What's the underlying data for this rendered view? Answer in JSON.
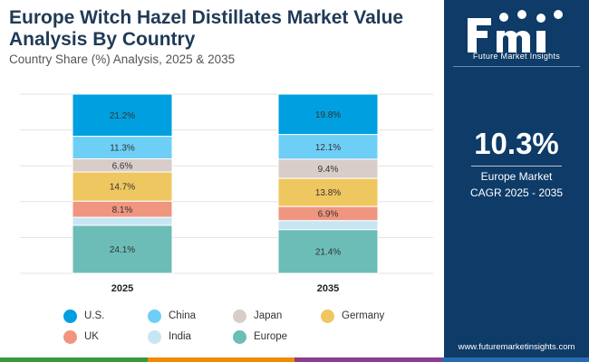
{
  "header": {
    "title": "Europe Witch Hazel Distillates Market Value Analysis By Country",
    "subtitle": "Country Share (%) Analysis, 2025 & 2035"
  },
  "panel": {
    "logo_text": "Future Market Insights",
    "cagr_value": "10.3%",
    "cagr_label_1": "Europe Market",
    "cagr_label_2": "CAGR 2025 - 2035",
    "website": "www.futuremarketinsights.com",
    "bg_color": "#0e3b67"
  },
  "bottom_strip_colors": [
    "#3a9a3a",
    "#f08a00",
    "#8a3d8f",
    "#2a6bb0"
  ],
  "chart_data": {
    "type": "bar",
    "stacked": true,
    "orientation": "vertical",
    "categories": [
      "2025",
      "2035"
    ],
    "series": [
      {
        "name": "U.S.",
        "color": "#009fdf",
        "values": [
          21.2,
          19.8
        ],
        "labels": [
          "21.2%",
          "19.8%"
        ]
      },
      {
        "name": "China",
        "color": "#6ecff6",
        "values": [
          11.3,
          12.1
        ],
        "labels": [
          "11.3%",
          "12.1%"
        ]
      },
      {
        "name": "Japan",
        "color": "#d9cdc9",
        "values": [
          6.6,
          9.4
        ],
        "labels": [
          "6.6%",
          "9.4%"
        ]
      },
      {
        "name": "Germany",
        "color": "#efc761",
        "values": [
          14.7,
          13.8
        ],
        "labels": [
          "14.7%",
          "13.8%"
        ]
      },
      {
        "name": "UK",
        "color": "#f0957f",
        "values": [
          8.1,
          6.9
        ],
        "labels": [
          "8.1%",
          "6.9%"
        ]
      },
      {
        "name": "India",
        "color": "#c7e6f4",
        "values": [
          4.0,
          4.4
        ],
        "labels": [
          "",
          ""
        ]
      },
      {
        "name": "Europe",
        "color": "#6cbdb7",
        "values": [
          24.1,
          21.4
        ],
        "labels": [
          "24.1%",
          "21.4%"
        ]
      }
    ],
    "grid": true,
    "legend_position": "bottom"
  }
}
